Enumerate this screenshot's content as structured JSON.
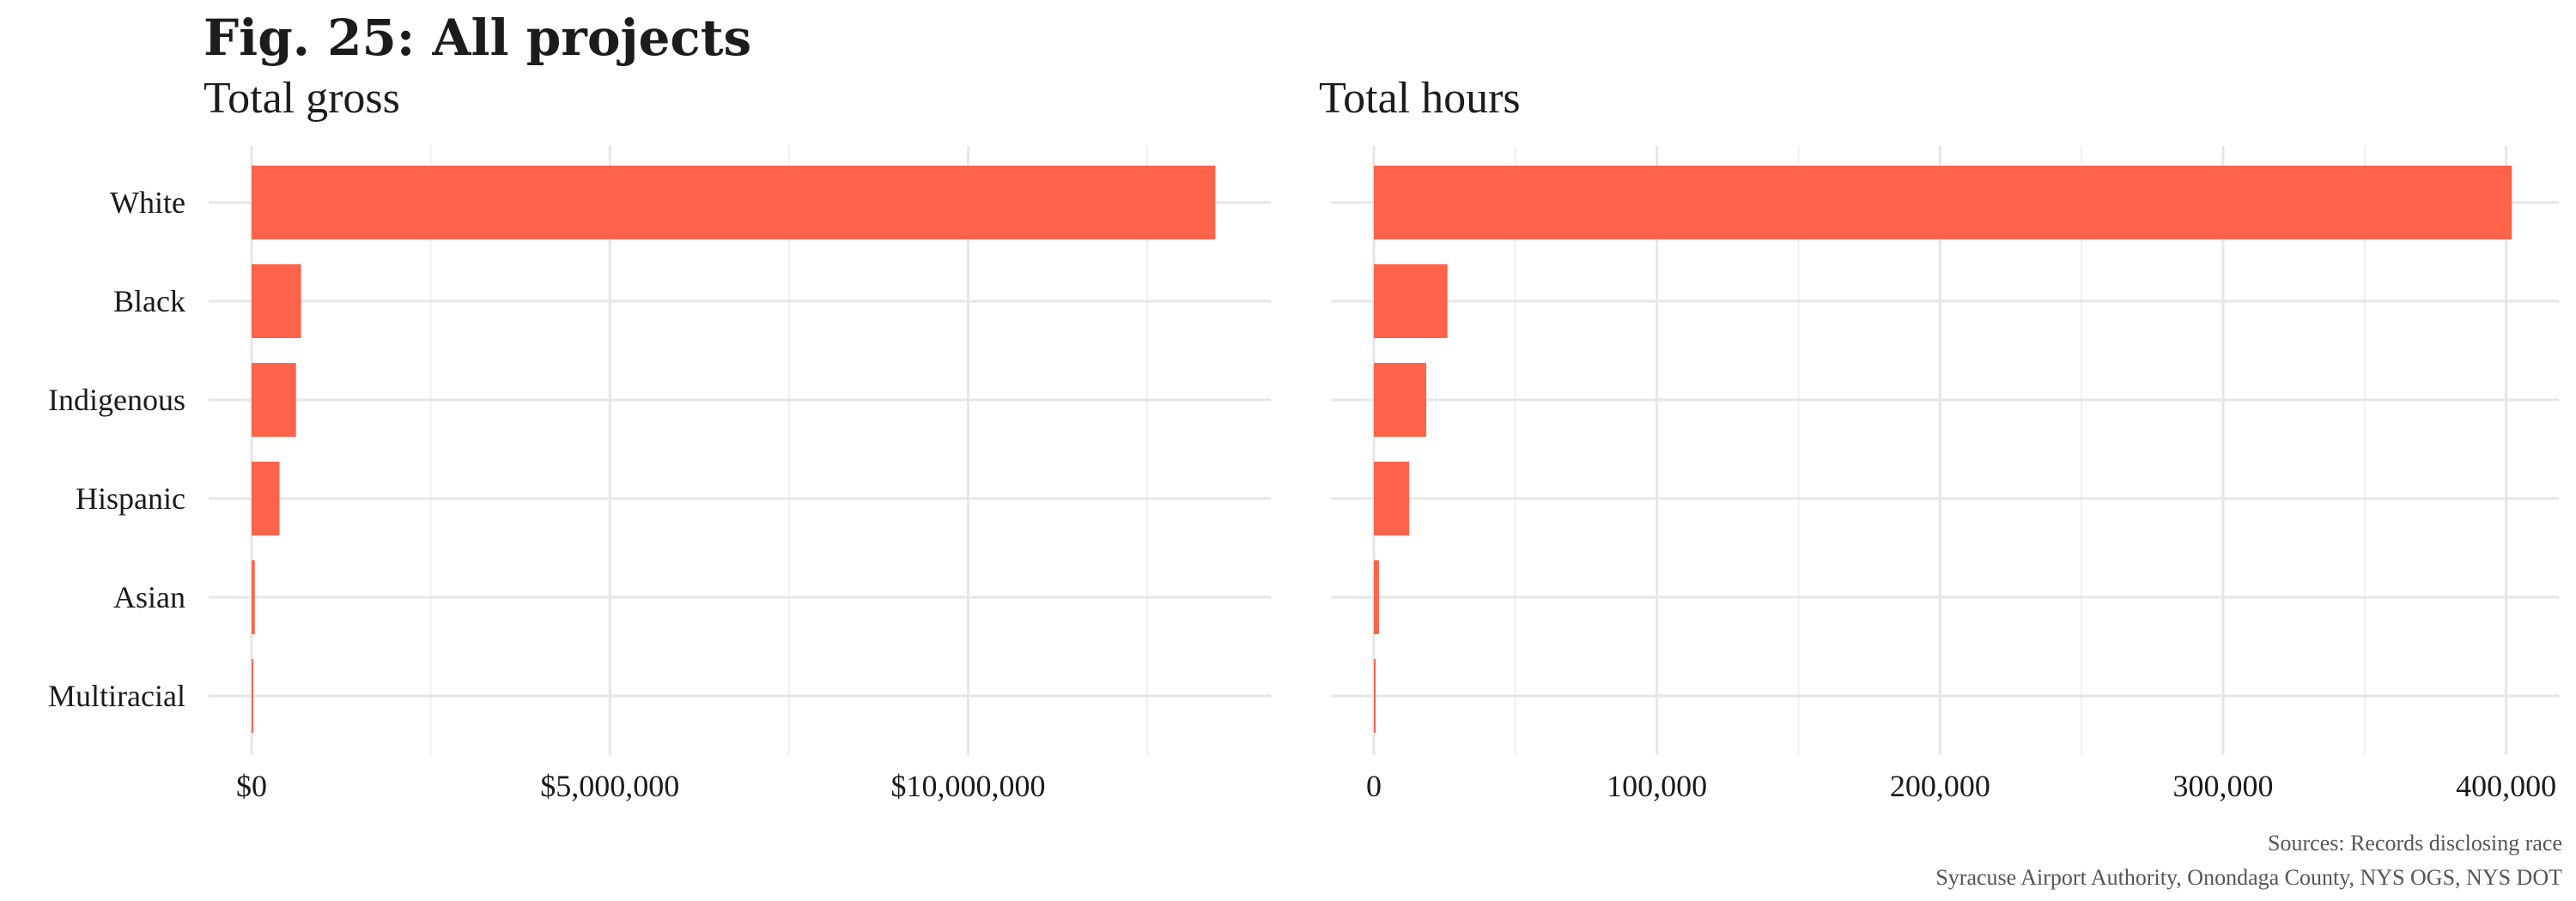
{
  "figure": {
    "title": "Fig. 25: All projects"
  },
  "colors": {
    "bar": "#ff634a",
    "grid_major": "#e6e6e6",
    "grid_minor": "#f0f0f0"
  },
  "chart_data": [
    {
      "type": "bar",
      "orientation": "horizontal",
      "title": "Total gross",
      "categories": [
        "White",
        "Black",
        "Indigenous",
        "Hispanic",
        "Asian",
        "Multiracial"
      ],
      "values": [
        13450000,
        690000,
        620000,
        390000,
        45000,
        10000
      ],
      "xlim": [
        0,
        14200000
      ],
      "x_ticks": [
        0,
        5000000,
        10000000
      ],
      "x_tick_labels": [
        "$0",
        "$5,000,000",
        "$10,000,000"
      ],
      "x_minor_ticks": [
        2500000,
        7500000,
        12500000
      ],
      "xlabel": "",
      "ylabel": "",
      "grid": true
    },
    {
      "type": "bar",
      "orientation": "horizontal",
      "title": "Total hours",
      "categories": [
        "White",
        "Black",
        "Indigenous",
        "Hispanic",
        "Asian",
        "Multiracial"
      ],
      "values": [
        402000,
        26000,
        18500,
        12500,
        1800,
        500
      ],
      "xlim": [
        0,
        418000
      ],
      "x_ticks": [
        0,
        100000,
        200000,
        300000,
        400000
      ],
      "x_tick_labels": [
        "0",
        "100,000",
        "200,000",
        "300,000",
        "400,000"
      ],
      "x_minor_ticks": [
        50000,
        150000,
        250000,
        350000
      ],
      "xlabel": "",
      "ylabel": "",
      "grid": true
    }
  ],
  "caption": {
    "line1": "Sources: Records disclosing race",
    "line2": "Syracuse Airport Authority, Onondaga County, NYS OGS, NYS DOT"
  }
}
